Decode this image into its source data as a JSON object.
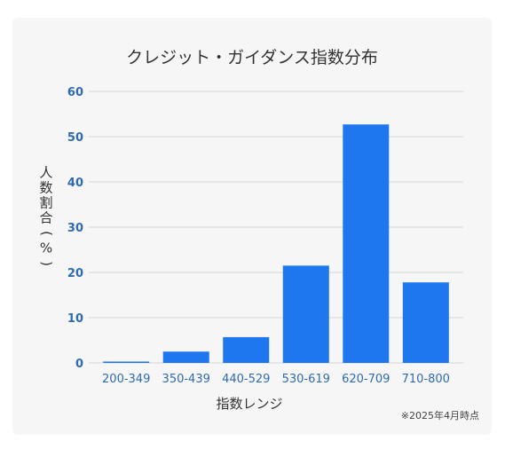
{
  "chart_data": {
    "type": "bar",
    "title": "クレジット・ガイダンス指数分布",
    "xlabel": "指数レンジ",
    "ylabel": "人数割合(%)",
    "categories": [
      "200-349",
      "350-439",
      "440-529",
      "530-619",
      "620-709",
      "710-800"
    ],
    "values": [
      0.3,
      2.5,
      5.7,
      21.5,
      52.7,
      17.8
    ],
    "ylim": [
      0,
      60
    ],
    "yticks": [
      0,
      10,
      20,
      30,
      40,
      50,
      60
    ],
    "grid": true,
    "legend": "none",
    "bar_color": "#1f77f0",
    "tick_color": "#2f6bb0"
  },
  "footnote": "※2025年4月時点"
}
